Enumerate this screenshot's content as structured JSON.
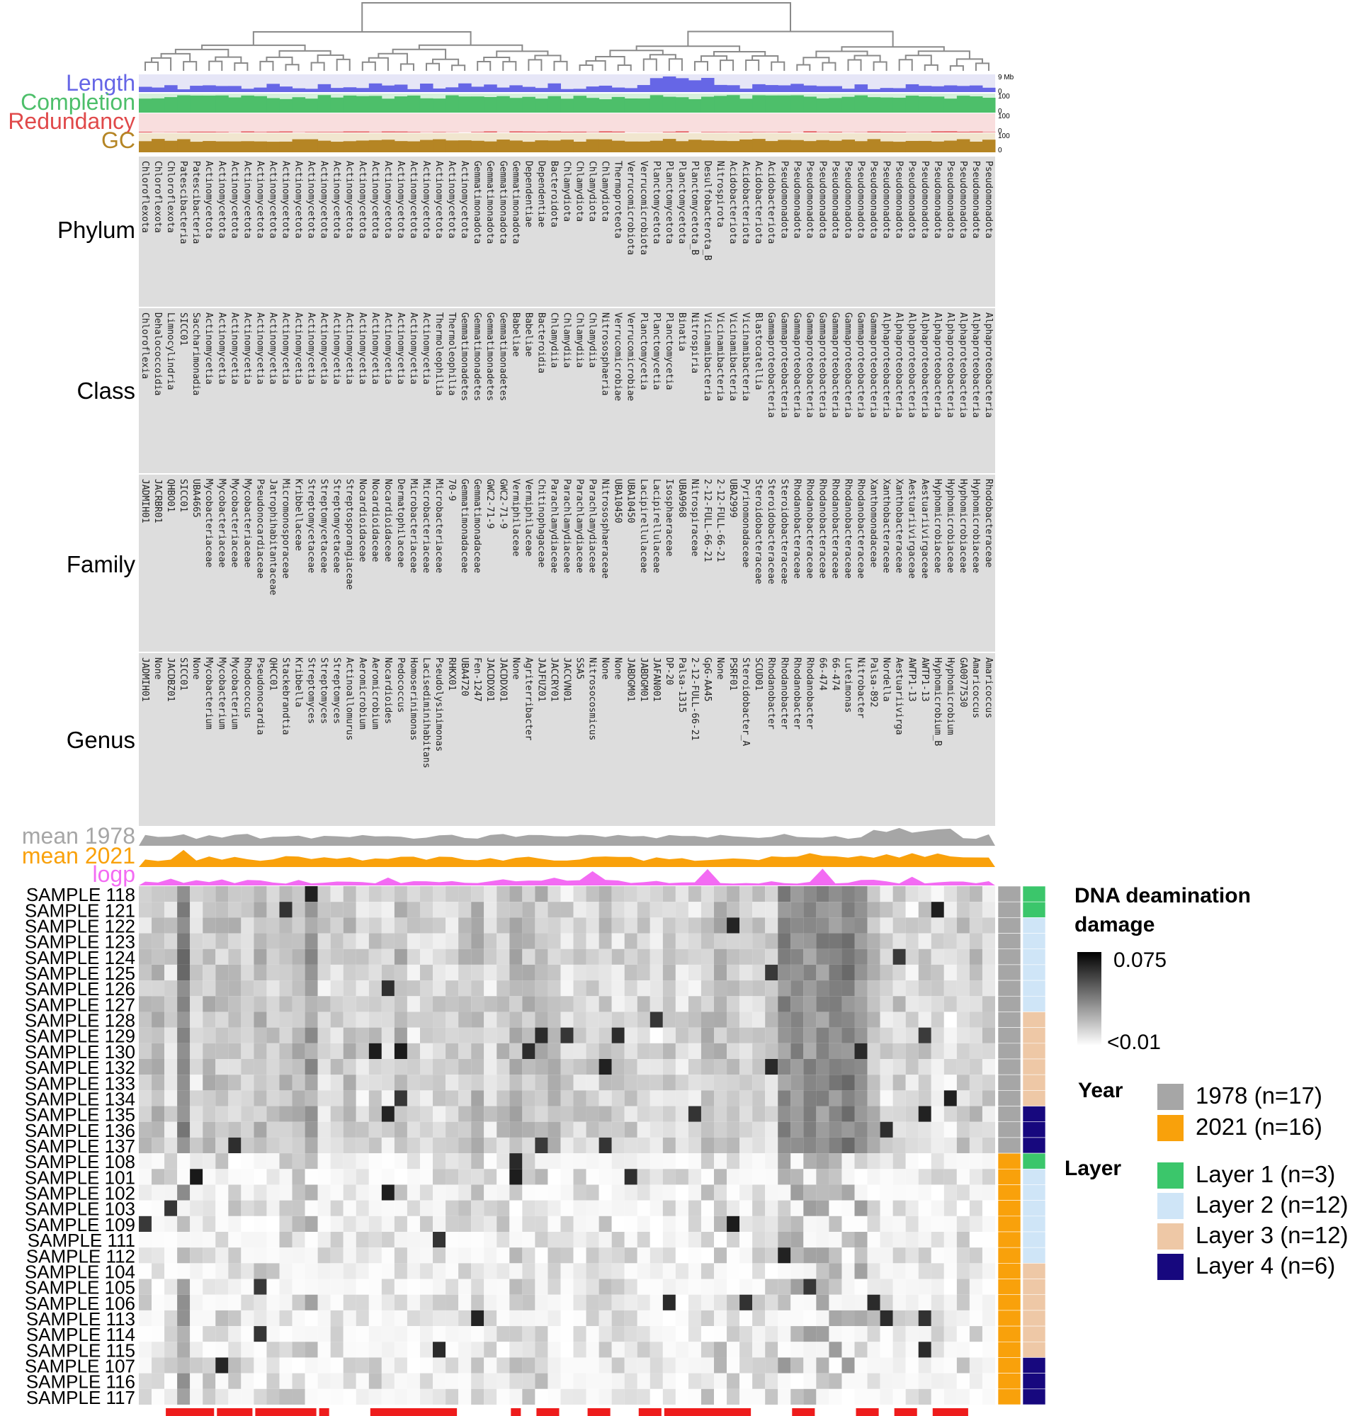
{
  "chart_data": {
    "type": "heatmap",
    "annotation_labels": {
      "length": "Length",
      "completion": "Completion",
      "redundancy": "Redundancy",
      "gc": "GC",
      "length_max": "9 Mb",
      "zero": "0",
      "hundred": "100",
      "phylum": "Phylum",
      "class": "Class",
      "family": "Family",
      "genus": "Genus",
      "mean1978": "mean 1978",
      "mean2021": "mean 2021",
      "logp": "logp"
    },
    "colors": {
      "length_fill": "#6666e6",
      "length_bg": "#e6e6f7",
      "completion_fill": "#4dbf6a",
      "completion_bg": "#d6f0dc",
      "redundancy_fill": "#e0494a",
      "redundancy_bg": "#f9dede",
      "gc_fill": "#b58524",
      "gc_bg": "#f1e6cf",
      "mean1978": "#a6a6a6",
      "mean2021": "#f9a10b",
      "logp": "#f36bf3",
      "tax_bg": "#dddddd",
      "sig_bar": "#ee1c1c",
      "year_1978": "#a6a6a6",
      "year_2021": "#f9a10b",
      "layer1": "#3bc66b",
      "layer2": "#cfe5f7",
      "layer3": "#eec8a6",
      "layer4": "#17087e"
    },
    "taxonomy": {
      "phylum": [
        "Chloroflexota",
        "Chloroflexota",
        "Chloroflexota",
        "Patescibacteria",
        "Patescibacteria",
        "Actinomycetota",
        "Actinomycetota",
        "Actinomycetota",
        "Actinomycetota",
        "Actinomycetota",
        "Actinomycetota",
        "Actinomycetota",
        "Actinomycetota",
        "Actinomycetota",
        "Actinomycetota",
        "Actinomycetota",
        "Actinomycetota",
        "Actinomycetota",
        "Actinomycetota",
        "Actinomycetota",
        "Actinomycetota",
        "Actinomycetota",
        "Actinomycetota",
        "Actinomycetota",
        "Actinomycetota",
        "Actinomycetota",
        "Gemmatimonadota",
        "Gemmatimonadota",
        "Gemmatimonadota",
        "Gemmatimonadota",
        "Dependentiae",
        "Dependentiae",
        "Bacteroidota",
        "Chlamydiota",
        "Chlamydiota",
        "Chlamydiota",
        "Chlamydiota",
        "Thermoproteota",
        "Verrucomicrobiota",
        "Verrucomicrobiota",
        "Planctomycetota",
        "Planctomycetota",
        "Planctomycetota",
        "Planctomycetota_B",
        "Desulfobacterota_B",
        "Nitrospirota",
        "Acidobacteriota",
        "Acidobacteriota",
        "Acidobacteriota",
        "Acidobacteriota",
        "Pseudomonadota",
        "Pseudomonadota",
        "Pseudomonadota",
        "Pseudomonadota",
        "Pseudomonadota",
        "Pseudomonadota",
        "Pseudomonadota",
        "Pseudomonadota",
        "Pseudomonadota",
        "Pseudomonadota",
        "Pseudomonadota",
        "Pseudomonadota",
        "Pseudomonadota",
        "Pseudomonadota",
        "Pseudomonadota",
        "Pseudomonadota",
        "Pseudomonadota"
      ],
      "class": [
        "Chloroflexia",
        "Dehalococcoidia",
        "Limnocylindria",
        "SICC01",
        "Saccharimonadia",
        "Actinomycetia",
        "Actinomycetia",
        "Actinomycetia",
        "Actinomycetia",
        "Actinomycetia",
        "Actinomycetia",
        "Actinomycetia",
        "Actinomycetia",
        "Actinomycetia",
        "Actinomycetia",
        "Actinomycetia",
        "Actinomycetia",
        "Actinomycetia",
        "Actinomycetia",
        "Actinomycetia",
        "Actinomycetia",
        "Actinomycetia",
        "Actinomycetia",
        "Thermoleophilia",
        "Thermoleophilia",
        "Gemmatimonadetes",
        "Gemmatimonadetes",
        "Gemmatimonadetes",
        "Gemmatimonadetes",
        "Babeliae",
        "Babeliae",
        "Bacteroidia",
        "Chlamydiia",
        "Chlamydiia",
        "Chlamydiia",
        "Chlamydiia",
        "Nitrososphaeria",
        "Verrucomicrobiae",
        "Verrucomicrobiae",
        "Planctomycetia",
        "Planctomycetia",
        "Planctomycetia",
        "Binatia",
        "Nitrospiria",
        "Vicinamibacteria",
        "Vicinamibacteria",
        "Vicinamibacteria",
        "Vicinamibacteria",
        "Blastocatellia",
        "Gammaproteobacteria",
        "Gammaproteobacteria",
        "Gammaproteobacteria",
        "Gammaproteobacteria",
        "Gammaproteobacteria",
        "Gammaproteobacteria",
        "Gammaproteobacteria",
        "Gammaproteobacteria",
        "Gammaproteobacteria",
        "Alphaproteobacteria",
        "Alphaproteobacteria",
        "Alphaproteobacteria",
        "Alphaproteobacteria",
        "Alphaproteobacteria",
        "Alphaproteobacteria",
        "Alphaproteobacteria",
        "Alphaproteobacteria",
        "Alphaproteobacteria"
      ],
      "family": [
        "JADMIH01",
        "JACRBR01",
        "QHBO01",
        "SICC01",
        "UBA4665",
        "Mycobacteriaceae",
        "Mycobacteriaceae",
        "Mycobacteriaceae",
        "Mycobacteriaceae",
        "Pseudonocardiaceae",
        "Jatrophihabitantaceae",
        "Micromonosporaceae",
        "Kribbellaceae",
        "Streptomycetaceae",
        "Streptomycetaceae",
        "Streptomycetaceae",
        "Streptosporangiaceae",
        "Nocardioidaceae",
        "Nocardioidaceae",
        "Nocardioidaceae",
        "Dermatophilaceae",
        "Microbacteriaceae",
        "Microbacteriaceae",
        "Microbacteriaceae",
        "70-9",
        "Gemmatimonadaceae",
        "Gemmatimonadaceae",
        "GWC2-71-9",
        "GWC2-71-9",
        "Vermiphilaceae",
        "Vermiphilaceae",
        "Chitinophagaceae",
        "Parachlamydiaceae",
        "Parachlamydiaceae",
        "Parachlamydiaceae",
        "Parachlamydiaceae",
        "Nitrososphaeraceae",
        "UBA10450",
        "UBA10450",
        "Lacipirellulaceae",
        "Lacipirellulaceae",
        "Isosphaeraceae",
        "UBA9968",
        "Nitrospiraceae",
        "2-12-FULL-66-21",
        "2-12-FULL-66-21",
        "UBA2999",
        "Pyrinomonadaceae",
        "Steroidobacteraceae",
        "Steroidobacteraceae",
        "Steroidobacteraceae",
        "Rhodanobacteraceae",
        "Rhodanobacteraceae",
        "Rhodanobacteraceae",
        "Rhodanobacteraceae",
        "Rhodanobacteraceae",
        "Rhodanobacteraceae",
        "Xanthomonadaceae",
        "Xanthobacteraceae",
        "Xanthobacteraceae",
        "Aestuariivirgaceae",
        "Aestuariivirgaceae",
        "Hyphomicrobiaceae",
        "Hyphomicrobiaceae",
        "Hyphomicrobiaceae",
        "Hyphomicrobiaceae",
        "Rhodobacteraceae"
      ],
      "genus": [
        "JADMIH01",
        "None",
        "JACDBZ01",
        "SICC01",
        "None",
        "Mycobacterium",
        "Mycobacterium",
        "Mycobacterium",
        "Rhodococcus",
        "Pseudonocardia",
        "QHCC01",
        "Stackebrandtia",
        "Kribbella",
        "Streptomyces",
        "Streptomyces",
        "Streptomyces",
        "Actinoallomurus",
        "Aeromicrobium",
        "Aeromicrobium",
        "Nocardioides",
        "Pedococcus",
        "Homoserinimonas",
        "Lacisediminihabitans",
        "Pseudolysinimonas",
        "RHKX01",
        "UBA4720",
        "Fen-1247",
        "JACDDX01",
        "JACDDX01",
        "None",
        "Agriterribacter",
        "JAJFUZ01",
        "JACCRY01",
        "JACCVN01",
        "SSA5",
        "Nitrosocosmicus",
        "None",
        "None",
        "JABDGM01",
        "JABDGM01",
        "JAFAN001",
        "DP-20",
        "Palsa-1315",
        "2-12-FULL-66-21",
        "GpG-AA45",
        "None",
        "PSRF01",
        "Steroidobacter_A",
        "SCUD01",
        "Rhodanobacter",
        "Rhodanobacter",
        "Rhodanobacter",
        "Rhodanobacter",
        "66-474",
        "66-474",
        "Luteimonas",
        "Nitrobacter",
        "Palsa-892",
        "Nordella",
        "Aestuariivirga",
        "AWTP1-13",
        "AWTP1-13",
        "Hyphomicrobium_B",
        "Hyphomicrobium",
        "GA0077530",
        "Amaricoccus",
        "Amaricoccus"
      ]
    },
    "samples": [
      {
        "name": "SAMPLE 118",
        "year": "1978",
        "layer": 1
      },
      {
        "name": "SAMPLE 121",
        "year": "1978",
        "layer": 1
      },
      {
        "name": "SAMPLE 122",
        "year": "1978",
        "layer": 2
      },
      {
        "name": "SAMPLE 123",
        "year": "1978",
        "layer": 2
      },
      {
        "name": "SAMPLE 124",
        "year": "1978",
        "layer": 2
      },
      {
        "name": "SAMPLE 125",
        "year": "1978",
        "layer": 2
      },
      {
        "name": "SAMPLE 126",
        "year": "1978",
        "layer": 2
      },
      {
        "name": "SAMPLE 127",
        "year": "1978",
        "layer": 2
      },
      {
        "name": "SAMPLE 128",
        "year": "1978",
        "layer": 3
      },
      {
        "name": "SAMPLE 129",
        "year": "1978",
        "layer": 3
      },
      {
        "name": "SAMPLE 130",
        "year": "1978",
        "layer": 3
      },
      {
        "name": "SAMPLE 132",
        "year": "1978",
        "layer": 3
      },
      {
        "name": "SAMPLE 133",
        "year": "1978",
        "layer": 3
      },
      {
        "name": "SAMPLE 134",
        "year": "1978",
        "layer": 3
      },
      {
        "name": "SAMPLE 135",
        "year": "1978",
        "layer": 4
      },
      {
        "name": "SAMPLE 136",
        "year": "1978",
        "layer": 4
      },
      {
        "name": "SAMPLE 137",
        "year": "1978",
        "layer": 4
      },
      {
        "name": "SAMPLE 108",
        "year": "2021",
        "layer": 1
      },
      {
        "name": "SAMPLE 101",
        "year": "2021",
        "layer": 2
      },
      {
        "name": "SAMPLE 102",
        "year": "2021",
        "layer": 2
      },
      {
        "name": "SAMPLE 103",
        "year": "2021",
        "layer": 2
      },
      {
        "name": "SAMPLE 109",
        "year": "2021",
        "layer": 2
      },
      {
        "name": "SAMPLE 111",
        "year": "2021",
        "layer": 2
      },
      {
        "name": "SAMPLE 112",
        "year": "2021",
        "layer": 2
      },
      {
        "name": "SAMPLE 104",
        "year": "2021",
        "layer": 3
      },
      {
        "name": "SAMPLE 105",
        "year": "2021",
        "layer": 3
      },
      {
        "name": "SAMPLE 106",
        "year": "2021",
        "layer": 3
      },
      {
        "name": "SAMPLE 113",
        "year": "2021",
        "layer": 3
      },
      {
        "name": "SAMPLE 114",
        "year": "2021",
        "layer": 3
      },
      {
        "name": "SAMPLE 115",
        "year": "2021",
        "layer": 3
      },
      {
        "name": "SAMPLE 107",
        "year": "2021",
        "layer": 4
      },
      {
        "name": "SAMPLE 116",
        "year": "2021",
        "layer": 4
      },
      {
        "name": "SAMPLE 117",
        "year": "2021",
        "layer": 4
      }
    ],
    "color_scale": {
      "min_label": "<0.01",
      "max_label": "0.075",
      "min": 0.01,
      "max": 0.075
    },
    "legend": {
      "title_line1": "DNA deamination",
      "title_line2": "damage",
      "year_title": "Year",
      "year_items": [
        {
          "label": "1978 (n=17)",
          "color": "#a6a6a6"
        },
        {
          "label": "2021 (n=16)",
          "color": "#f9a10b"
        }
      ],
      "layer_title": "Layer",
      "layer_items": [
        {
          "label": "Layer 1 (n=3)",
          "color": "#3bc66b"
        },
        {
          "label": "Layer 2 (n=12)",
          "color": "#cfe5f7"
        },
        {
          "label": "Layer 3 (n=12)",
          "color": "#eec8a6"
        },
        {
          "label": "Layer 4 (n=6)",
          "color": "#17087e"
        }
      ]
    }
  }
}
